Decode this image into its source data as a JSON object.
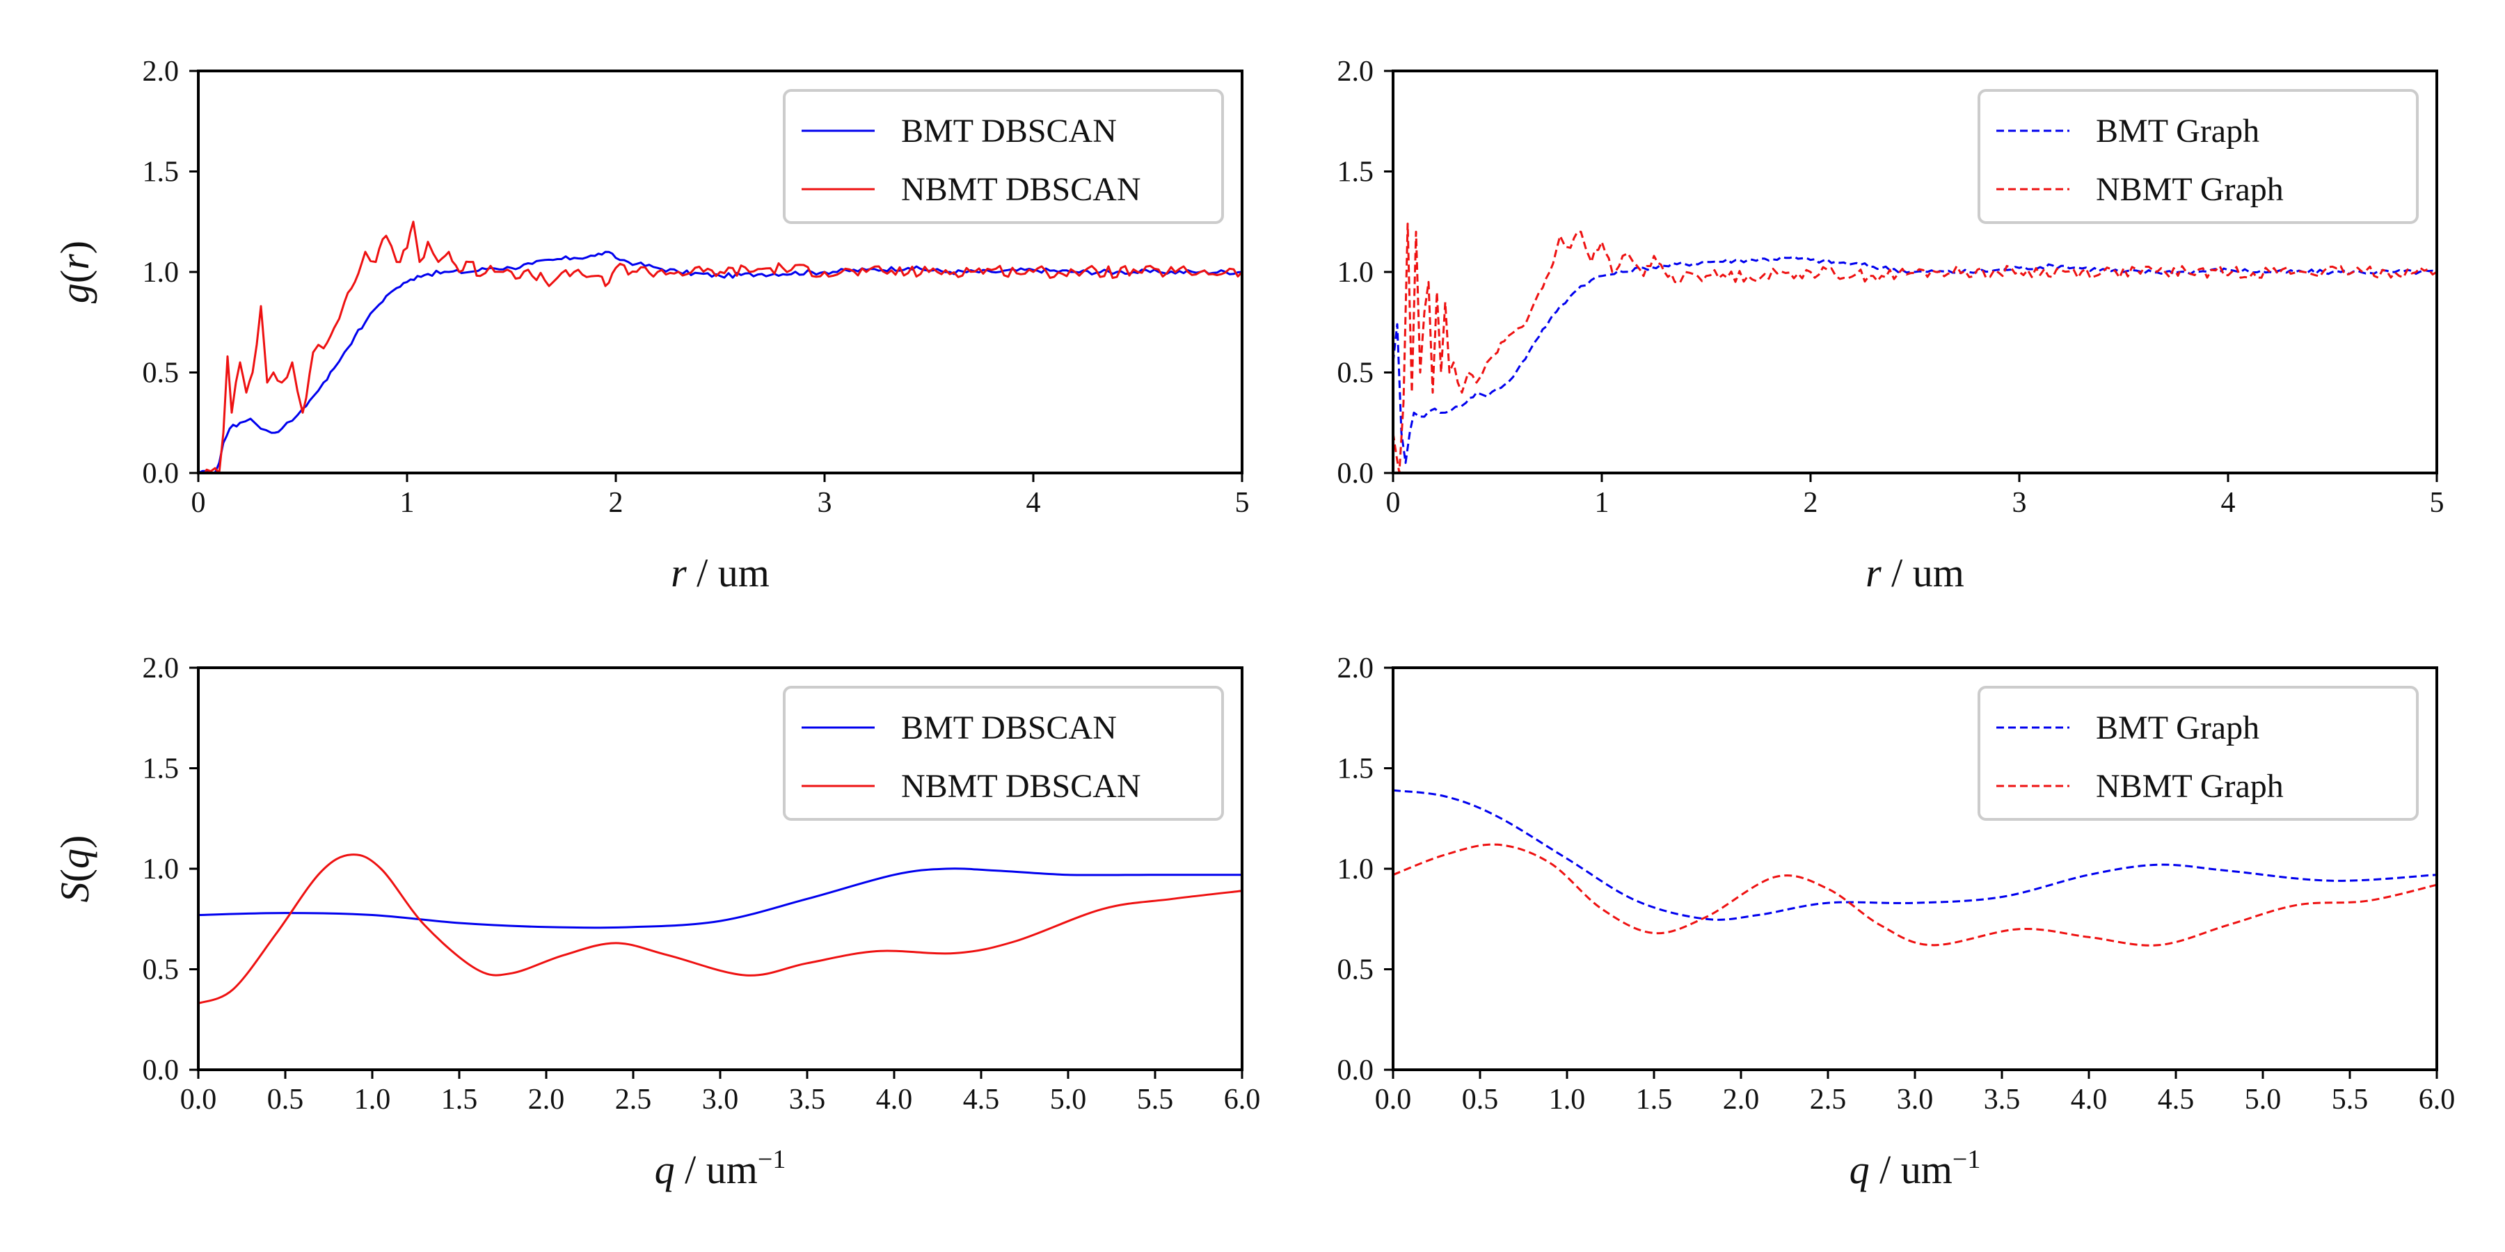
{
  "colors": {
    "blue": "#0000ee",
    "red": "#ee1111"
  },
  "chart_data": [
    {
      "type": "line",
      "panel": "top-left",
      "ylabel": "g(r)",
      "xlabel": "r / um",
      "xlim": [
        0,
        5
      ],
      "ylim": [
        0,
        2
      ],
      "xticks": [
        0,
        1,
        2,
        3,
        4,
        5
      ],
      "xtick_labels": [
        "0",
        "1",
        "2",
        "3",
        "4",
        "5"
      ],
      "yticks": [
        0,
        0.5,
        1,
        1.5,
        2
      ],
      "ytick_labels": [
        "0.0",
        "0.5",
        "1.0",
        "1.5",
        "2.0"
      ],
      "legend": "top-right",
      "series": [
        {
          "name": "BMT DBSCAN",
          "color": "#0000ee",
          "dash": "solid",
          "noise": 0.012,
          "x": [
            0,
            0.08,
            0.1,
            0.12,
            0.15,
            0.2,
            0.25,
            0.3,
            0.35,
            0.4,
            0.45,
            0.5,
            0.55,
            0.6,
            0.65,
            0.7,
            0.75,
            0.8,
            0.85,
            0.9,
            0.95,
            1.0,
            1.05,
            1.1,
            1.2,
            1.3,
            1.4,
            1.5,
            1.6,
            1.7,
            1.8,
            1.9,
            1.95,
            2.0,
            2.1,
            2.2,
            2.3,
            2.5,
            2.7,
            3.0,
            3.2,
            3.4,
            3.6,
            3.8,
            4.0,
            4.2,
            4.4,
            4.6,
            4.8,
            5.0
          ],
          "y": [
            0,
            0,
            0.05,
            0.15,
            0.22,
            0.25,
            0.27,
            0.22,
            0.2,
            0.22,
            0.26,
            0.32,
            0.38,
            0.45,
            0.52,
            0.6,
            0.68,
            0.75,
            0.82,
            0.88,
            0.92,
            0.95,
            0.98,
            0.99,
            1.0,
            1.0,
            1.02,
            1.02,
            1.04,
            1.06,
            1.07,
            1.08,
            1.1,
            1.07,
            1.04,
            1.02,
            1.0,
            0.98,
            0.99,
            1.0,
            1.01,
            1.02,
            1.0,
            1.0,
            1.01,
            1.0,
            1.0,
            1.0,
            1.0,
            1.0
          ]
        },
        {
          "name": "NBMT DBSCAN",
          "color": "#ee1111",
          "dash": "solid",
          "noise": 0.03,
          "x": [
            0,
            0.1,
            0.12,
            0.14,
            0.16,
            0.18,
            0.2,
            0.23,
            0.26,
            0.3,
            0.33,
            0.36,
            0.4,
            0.45,
            0.5,
            0.55,
            0.6,
            0.65,
            0.7,
            0.75,
            0.8,
            0.85,
            0.9,
            0.95,
            1.0,
            1.03,
            1.06,
            1.1,
            1.15,
            1.2,
            1.25,
            1.3,
            1.35,
            1.4,
            1.5,
            1.6,
            1.7,
            1.8,
            1.9,
            1.95,
            2.0,
            2.2,
            2.5,
            2.8,
            3.0,
            3.2,
            3.5,
            3.8,
            4.0,
            4.2,
            4.5,
            4.8,
            5.0
          ],
          "y": [
            0,
            0,
            0.2,
            0.58,
            0.3,
            0.45,
            0.55,
            0.4,
            0.5,
            0.83,
            0.45,
            0.5,
            0.45,
            0.55,
            0.3,
            0.6,
            0.62,
            0.72,
            0.85,
            0.95,
            1.1,
            1.05,
            1.18,
            1.05,
            1.12,
            1.25,
            1.05,
            1.15,
            1.05,
            1.1,
            1.0,
            1.05,
            0.98,
            1.03,
            1.0,
            0.98,
            0.95,
            1.0,
            0.98,
            0.93,
            1.02,
            1.0,
            1.0,
            1.02,
            1.0,
            1.0,
            1.0,
            1.01,
            1.0,
            1.0,
            1.0,
            1.0,
            1.0
          ]
        }
      ]
    },
    {
      "type": "line",
      "panel": "top-right",
      "ylabel": "",
      "xlabel": "r / um",
      "xlim": [
        0,
        5
      ],
      "ylim": [
        0,
        2
      ],
      "xticks": [
        0,
        1,
        2,
        3,
        4,
        5
      ],
      "xtick_labels": [
        "0",
        "1",
        "2",
        "3",
        "4",
        "5"
      ],
      "yticks": [
        0,
        0.5,
        1,
        1.5,
        2
      ],
      "ytick_labels": [
        "0.0",
        "0.5",
        "1.0",
        "1.5",
        "2.0"
      ],
      "legend": "top-right",
      "series": [
        {
          "name": "BMT Graph",
          "color": "#0000ee",
          "dash": "dashed",
          "noise": 0.012,
          "x": [
            0,
            0.02,
            0.04,
            0.06,
            0.08,
            0.1,
            0.15,
            0.2,
            0.25,
            0.3,
            0.35,
            0.4,
            0.45,
            0.5,
            0.55,
            0.6,
            0.65,
            0.7,
            0.75,
            0.8,
            0.85,
            0.9,
            0.95,
            1.0,
            1.1,
            1.2,
            1.3,
            1.5,
            1.7,
            1.9,
            2.0,
            2.2,
            2.5,
            2.8,
            3.0,
            3.2,
            3.5,
            3.8,
            4.0,
            4.2,
            4.5,
            4.8,
            5.0
          ],
          "y": [
            0.55,
            0.74,
            0.2,
            0.05,
            0.2,
            0.3,
            0.28,
            0.32,
            0.3,
            0.33,
            0.35,
            0.4,
            0.38,
            0.42,
            0.45,
            0.52,
            0.6,
            0.68,
            0.76,
            0.83,
            0.88,
            0.93,
            0.96,
            0.98,
            1.0,
            1.02,
            1.03,
            1.05,
            1.06,
            1.07,
            1.06,
            1.04,
            1.0,
            1.0,
            1.02,
            1.03,
            1.0,
            1.0,
            1.01,
            1.0,
            1.0,
            1.0,
            1.0
          ]
        },
        {
          "name": "NBMT Graph",
          "color": "#ee1111",
          "dash": "dashed",
          "noise": 0.03,
          "x": [
            0,
            0.03,
            0.05,
            0.07,
            0.09,
            0.11,
            0.13,
            0.15,
            0.17,
            0.19,
            0.21,
            0.23,
            0.25,
            0.27,
            0.29,
            0.31,
            0.33,
            0.36,
            0.4,
            0.45,
            0.5,
            0.55,
            0.6,
            0.65,
            0.7,
            0.75,
            0.8,
            0.85,
            0.9,
            0.95,
            1.0,
            1.05,
            1.1,
            1.15,
            1.2,
            1.25,
            1.3,
            1.35,
            1.4,
            1.5,
            1.7,
            2.0,
            2.3,
            2.6,
            3.0,
            3.4,
            3.8,
            4.2,
            4.6,
            5.0
          ],
          "y": [
            0.2,
            0.0,
            0.35,
            1.24,
            0.4,
            1.2,
            0.5,
            0.8,
            0.95,
            0.4,
            0.9,
            0.5,
            0.85,
            0.5,
            0.55,
            0.45,
            0.4,
            0.5,
            0.45,
            0.55,
            0.6,
            0.68,
            0.72,
            0.78,
            0.9,
            1.0,
            1.18,
            1.12,
            1.2,
            1.05,
            1.15,
            1.0,
            1.08,
            1.05,
            0.98,
            1.08,
            1.0,
            0.95,
            1.0,
            0.98,
            0.98,
            1.0,
            0.98,
            1.0,
            1.0,
            1.0,
            1.0,
            1.0,
            1.0,
            1.0
          ]
        }
      ]
    },
    {
      "type": "line",
      "panel": "bottom-left",
      "ylabel": "S(q)",
      "xlabel": "q / um",
      "xlabel_sup": "−1",
      "xlim": [
        0,
        6
      ],
      "ylim": [
        0,
        2
      ],
      "xticks": [
        0,
        0.5,
        1,
        1.5,
        2,
        2.5,
        3,
        3.5,
        4,
        4.5,
        5,
        5.5,
        6
      ],
      "xtick_labels": [
        "0.0",
        "0.5",
        "1.0",
        "1.5",
        "2.0",
        "2.5",
        "3.0",
        "3.5",
        "4.0",
        "4.5",
        "5.0",
        "5.5",
        "6.0"
      ],
      "yticks": [
        0,
        0.5,
        1,
        1.5,
        2
      ],
      "ytick_labels": [
        "0.0",
        "0.5",
        "1.0",
        "1.5",
        "2.0"
      ],
      "legend": "top-right",
      "series": [
        {
          "name": "BMT DBSCAN",
          "color": "#0000ee",
          "dash": "solid",
          "noise": 0,
          "x": [
            0,
            0.5,
            1.0,
            1.5,
            2.0,
            2.5,
            3.0,
            3.5,
            4.0,
            4.3,
            4.6,
            5.0,
            5.5,
            6.0
          ],
          "y": [
            0.77,
            0.78,
            0.77,
            0.73,
            0.71,
            0.71,
            0.74,
            0.85,
            0.97,
            1.0,
            0.99,
            0.97,
            0.97,
            0.97
          ]
        },
        {
          "name": "NBMT DBSCAN",
          "color": "#ee1111",
          "dash": "solid",
          "noise": 0,
          "x": [
            0,
            0.2,
            0.45,
            0.7,
            0.88,
            1.05,
            1.3,
            1.6,
            1.8,
            2.1,
            2.4,
            2.7,
            3.15,
            3.5,
            3.9,
            4.35,
            4.7,
            5.2,
            5.6,
            6.0
          ],
          "y": [
            0.33,
            0.4,
            0.68,
            0.98,
            1.07,
            1.0,
            0.72,
            0.5,
            0.48,
            0.57,
            0.63,
            0.57,
            0.47,
            0.53,
            0.59,
            0.58,
            0.64,
            0.8,
            0.85,
            0.89
          ]
        }
      ]
    },
    {
      "type": "line",
      "panel": "bottom-right",
      "ylabel": "",
      "xlabel": "q / um",
      "xlabel_sup": "−1",
      "xlim": [
        0,
        6
      ],
      "ylim": [
        0,
        2
      ],
      "xticks": [
        0,
        0.5,
        1,
        1.5,
        2,
        2.5,
        3,
        3.5,
        4,
        4.5,
        5,
        5.5,
        6
      ],
      "xtick_labels": [
        "0.0",
        "0.5",
        "1.0",
        "1.5",
        "2.0",
        "2.5",
        "3.0",
        "3.5",
        "4.0",
        "4.5",
        "5.0",
        "5.5",
        "6.0"
      ],
      "yticks": [
        0,
        0.5,
        1,
        1.5,
        2
      ],
      "ytick_labels": [
        "0.0",
        "0.5",
        "1.0",
        "1.5",
        "2.0"
      ],
      "legend": "top-right",
      "series": [
        {
          "name": "BMT Graph",
          "color": "#0000ee",
          "dash": "dashed",
          "noise": 0,
          "x": [
            0,
            0.3,
            0.6,
            1.0,
            1.4,
            1.8,
            2.1,
            2.5,
            3.0,
            3.5,
            4.0,
            4.4,
            4.8,
            5.4,
            6.0
          ],
          "y": [
            1.39,
            1.36,
            1.26,
            1.05,
            0.84,
            0.75,
            0.77,
            0.83,
            0.83,
            0.86,
            0.97,
            1.02,
            0.99,
            0.94,
            0.97
          ]
        },
        {
          "name": "NBMT Graph",
          "color": "#ee1111",
          "dash": "dashed",
          "noise": 0,
          "x": [
            0,
            0.3,
            0.6,
            0.9,
            1.2,
            1.5,
            1.8,
            2.2,
            2.5,
            2.8,
            3.1,
            3.6,
            4.0,
            4.4,
            4.8,
            5.2,
            5.6,
            6.0
          ],
          "y": [
            0.97,
            1.07,
            1.12,
            1.03,
            0.8,
            0.68,
            0.76,
            0.96,
            0.9,
            0.72,
            0.62,
            0.7,
            0.66,
            0.62,
            0.72,
            0.82,
            0.84,
            0.92
          ]
        }
      ]
    }
  ]
}
